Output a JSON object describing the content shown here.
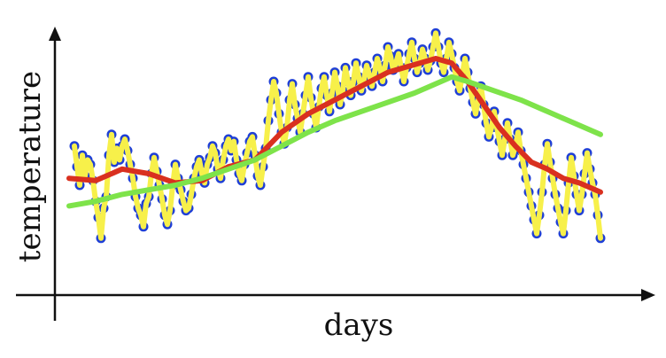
{
  "chart_data": {
    "type": "scatter",
    "title": "",
    "xlabel": "days",
    "ylabel": "temperature",
    "xlim": [
      0,
      100
    ],
    "ylim": [
      0,
      100
    ],
    "grid": false,
    "legend": "none",
    "colors": {
      "points": "#1f3fd6",
      "yellow": "#f7f04a",
      "red": "#d9301f",
      "green": "#7ee34a",
      "axis": "#111111"
    },
    "points": [
      [
        1,
        52
      ],
      [
        1.5,
        43
      ],
      [
        2,
        35
      ],
      [
        2.5,
        48
      ],
      [
        3,
        39
      ],
      [
        3.5,
        46
      ],
      [
        4,
        44
      ],
      [
        4.5,
        37
      ],
      [
        5,
        28
      ],
      [
        5.5,
        21
      ],
      [
        6,
        12
      ],
      [
        6.5,
        25
      ],
      [
        7,
        30
      ],
      [
        7.5,
        48
      ],
      [
        8,
        57
      ],
      [
        8.5,
        45
      ],
      [
        9,
        51
      ],
      [
        9.5,
        46
      ],
      [
        10,
        52
      ],
      [
        10.5,
        55
      ],
      [
        11,
        50
      ],
      [
        11.5,
        44
      ],
      [
        12,
        38
      ],
      [
        12.5,
        30
      ],
      [
        13,
        25
      ],
      [
        13.5,
        22
      ],
      [
        14,
        17
      ],
      [
        14.5,
        27
      ],
      [
        15,
        30
      ],
      [
        15.5,
        40
      ],
      [
        16,
        47
      ],
      [
        16.5,
        41
      ],
      [
        17,
        35
      ],
      [
        17.5,
        29
      ],
      [
        18,
        22
      ],
      [
        18.5,
        18
      ],
      [
        19,
        24
      ],
      [
        19.5,
        35
      ],
      [
        20,
        44
      ],
      [
        20.5,
        38
      ],
      [
        21,
        33
      ],
      [
        21.5,
        28
      ],
      [
        22,
        24
      ],
      [
        22.5,
        25
      ],
      [
        23,
        31
      ],
      [
        23.5,
        38
      ],
      [
        24,
        43
      ],
      [
        24.5,
        46
      ],
      [
        25,
        40
      ],
      [
        25.5,
        36
      ],
      [
        26,
        44
      ],
      [
        26.5,
        47
      ],
      [
        27,
        52
      ],
      [
        27.5,
        49
      ],
      [
        28,
        42
      ],
      [
        28.5,
        38
      ],
      [
        29,
        46
      ],
      [
        29.5,
        52
      ],
      [
        30,
        55
      ],
      [
        30.5,
        50
      ],
      [
        31,
        54
      ],
      [
        31.5,
        46
      ],
      [
        32,
        40
      ],
      [
        32.5,
        37
      ],
      [
        33,
        44
      ],
      [
        33.5,
        49
      ],
      [
        34,
        54
      ],
      [
        34.5,
        56
      ],
      [
        35,
        48
      ],
      [
        35.5,
        39
      ],
      [
        36,
        35
      ],
      [
        36.5,
        43
      ],
      [
        37,
        51
      ],
      [
        37.5,
        63
      ],
      [
        38,
        72
      ],
      [
        38.5,
        80
      ],
      [
        39,
        75
      ],
      [
        39.5,
        66
      ],
      [
        40,
        58
      ],
      [
        40.5,
        53
      ],
      [
        41,
        60
      ],
      [
        41.5,
        72
      ],
      [
        42,
        79
      ],
      [
        42.5,
        70
      ],
      [
        43,
        64
      ],
      [
        43.5,
        58
      ],
      [
        44,
        66
      ],
      [
        44.5,
        74
      ],
      [
        45,
        82
      ],
      [
        45.5,
        73
      ],
      [
        46,
        66
      ],
      [
        46.5,
        60
      ],
      [
        47,
        69
      ],
      [
        47.5,
        77
      ],
      [
        48,
        82
      ],
      [
        48.5,
        74
      ],
      [
        49,
        67
      ],
      [
        49.5,
        75
      ],
      [
        50,
        84
      ],
      [
        50.5,
        78
      ],
      [
        51,
        70
      ],
      [
        51.5,
        76
      ],
      [
        52,
        86
      ],
      [
        52.5,
        80
      ],
      [
        53,
        74
      ],
      [
        53.5,
        80
      ],
      [
        54,
        88
      ],
      [
        54.5,
        82
      ],
      [
        55,
        76
      ],
      [
        55.5,
        81
      ],
      [
        56,
        87
      ],
      [
        56.5,
        83
      ],
      [
        57,
        78
      ],
      [
        57.5,
        84
      ],
      [
        58,
        90
      ],
      [
        58.5,
        86
      ],
      [
        59,
        80
      ],
      [
        59.5,
        87
      ],
      [
        60,
        95
      ],
      [
        60.5,
        91
      ],
      [
        61,
        85
      ],
      [
        61.5,
        88
      ],
      [
        62,
        92
      ],
      [
        62.5,
        86
      ],
      [
        63,
        80
      ],
      [
        63.5,
        86
      ],
      [
        64,
        92
      ],
      [
        64.5,
        97
      ],
      [
        65,
        90
      ],
      [
        65.5,
        84
      ],
      [
        66,
        88
      ],
      [
        66.5,
        94
      ],
      [
        67,
        90
      ],
      [
        67.5,
        85
      ],
      [
        68,
        89
      ],
      [
        68.5,
        95
      ],
      [
        69,
        101
      ],
      [
        69.5,
        95
      ],
      [
        70,
        88
      ],
      [
        70.5,
        84
      ],
      [
        71,
        90
      ],
      [
        71.5,
        97
      ],
      [
        72,
        92
      ],
      [
        72.5,
        86
      ],
      [
        73,
        80
      ],
      [
        73.5,
        76
      ],
      [
        74,
        83
      ],
      [
        74.5,
        90
      ],
      [
        75,
        84
      ],
      [
        75.5,
        77
      ],
      [
        76,
        71
      ],
      [
        76.5,
        66
      ],
      [
        77,
        72
      ],
      [
        77.5,
        78
      ],
      [
        78,
        70
      ],
      [
        78.5,
        62
      ],
      [
        79,
        56
      ],
      [
        79.5,
        60
      ],
      [
        80,
        67
      ],
      [
        80.5,
        60
      ],
      [
        81,
        54
      ],
      [
        81.5,
        48
      ],
      [
        82,
        55
      ],
      [
        82.5,
        62
      ],
      [
        83,
        55
      ],
      [
        83.5,
        48
      ],
      [
        84,
        52
      ],
      [
        84.5,
        58
      ],
      [
        85,
        50
      ],
      [
        85.5,
        44
      ],
      [
        86,
        38
      ],
      [
        86.5,
        32
      ],
      [
        87,
        26
      ],
      [
        87.5,
        20
      ],
      [
        88,
        14
      ],
      [
        88.5,
        22
      ],
      [
        89,
        32
      ],
      [
        89.5,
        44
      ],
      [
        90,
        53
      ],
      [
        90.5,
        45
      ],
      [
        91,
        38
      ],
      [
        91.5,
        31
      ],
      [
        92,
        25
      ],
      [
        92.5,
        19
      ],
      [
        93,
        14
      ],
      [
        93.5,
        24
      ],
      [
        94,
        36
      ],
      [
        94.5,
        47
      ],
      [
        95,
        39
      ],
      [
        95.5,
        31
      ],
      [
        96,
        24
      ],
      [
        96.5,
        31
      ],
      [
        97,
        40
      ],
      [
        97.5,
        49
      ],
      [
        98,
        42
      ],
      [
        98.5,
        36
      ],
      [
        99,
        31
      ],
      [
        99.5,
        22
      ],
      [
        100,
        12
      ]
    ],
    "series": [
      {
        "color": "#d9301f",
        "x": [
          0,
          5,
          10,
          15,
          20,
          25,
          30,
          35,
          40,
          45,
          50,
          55,
          60,
          63,
          66,
          69,
          72,
          75,
          78,
          81,
          84,
          87,
          90,
          93,
          96,
          100
        ],
        "y": [
          38,
          37,
          42,
          40,
          36,
          37,
          43,
          46,
          58,
          66,
          72,
          78,
          84,
          86,
          88,
          90,
          88,
          80,
          70,
          60,
          52,
          45,
          42,
          38,
          36,
          32
        ]
      },
      {
        "color": "#7ee34a",
        "x": [
          0,
          5,
          10,
          15,
          20,
          25,
          30,
          35,
          40,
          45,
          50,
          55,
          60,
          65,
          70,
          72,
          75,
          80,
          85,
          90,
          95,
          100
        ],
        "y": [
          26,
          28,
          31,
          33,
          35,
          38,
          42,
          46,
          52,
          58,
          63,
          67,
          71,
          75,
          80,
          82,
          80,
          76,
          72,
          67,
          62,
          57
        ]
      }
    ]
  }
}
